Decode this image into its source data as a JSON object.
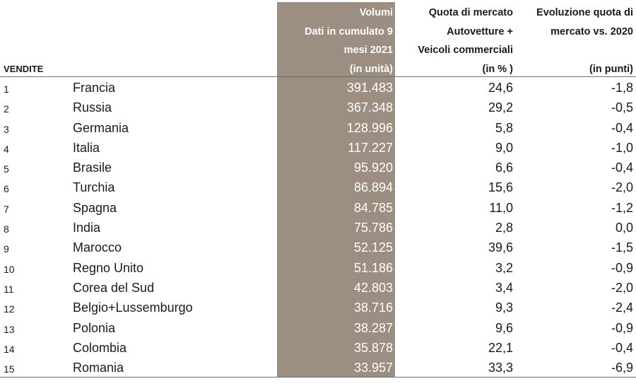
{
  "header": {
    "vendite": "VENDITE",
    "volumi": [
      "Volumi",
      "Dati in cumulato 9",
      "mesi 2021",
      "(in unità)"
    ],
    "quota": [
      "Quota di mercato",
      "Autovetture +",
      "Veicoli commerciali",
      "(in % )"
    ],
    "evoluzione": [
      "Evoluzione quota di",
      "mercato vs. 2020",
      "",
      "(in punti)"
    ]
  },
  "colors": {
    "volume_column": "#9c8e80",
    "rule": "#6e6e6e"
  },
  "rows": [
    {
      "rank": "1",
      "country": "Francia",
      "volume": "391.483",
      "quota": "24,6",
      "evoluzione": "-1,8"
    },
    {
      "rank": "2",
      "country": "Russia",
      "volume": "367.348",
      "quota": "29,2",
      "evoluzione": "-0,5"
    },
    {
      "rank": "3",
      "country": "Germania",
      "volume": "128.996",
      "quota": "5,8",
      "evoluzione": "-0,4"
    },
    {
      "rank": "4",
      "country": "Italia",
      "volume": "117.227",
      "quota": "9,0",
      "evoluzione": "-1,0"
    },
    {
      "rank": "5",
      "country": "Brasile",
      "volume": "95.920",
      "quota": "6,6",
      "evoluzione": "-0,4"
    },
    {
      "rank": "6",
      "country": "Turchia",
      "volume": "86.894",
      "quota": "15,6",
      "evoluzione": "-2,0"
    },
    {
      "rank": "7",
      "country": "Spagna",
      "volume": "84.785",
      "quota": "11,0",
      "evoluzione": "-1,2"
    },
    {
      "rank": "8",
      "country": "India",
      "volume": "75.786",
      "quota": "2,8",
      "evoluzione": "0,0"
    },
    {
      "rank": "9",
      "country": "Marocco",
      "volume": "52.125",
      "quota": "39,6",
      "evoluzione": "-1,5"
    },
    {
      "rank": "10",
      "country": "Regno Unito",
      "volume": "51.186",
      "quota": "3,2",
      "evoluzione": "-0,9"
    },
    {
      "rank": "11",
      "country": "Corea del Sud",
      "volume": "42.803",
      "quota": "3,4",
      "evoluzione": "-2,0"
    },
    {
      "rank": "12",
      "country": "Belgio+Lussemburgo",
      "volume": "38.716",
      "quota": "9,3",
      "evoluzione": "-2,4"
    },
    {
      "rank": "13",
      "country": "Polonia",
      "volume": "38.287",
      "quota": "9,6",
      "evoluzione": "-0,9"
    },
    {
      "rank": "14",
      "country": "Colombia",
      "volume": "35.878",
      "quota": "22,1",
      "evoluzione": "-0,4"
    },
    {
      "rank": "15",
      "country": "Romania",
      "volume": "33.957",
      "quota": "33,3",
      "evoluzione": "-6,9"
    }
  ]
}
